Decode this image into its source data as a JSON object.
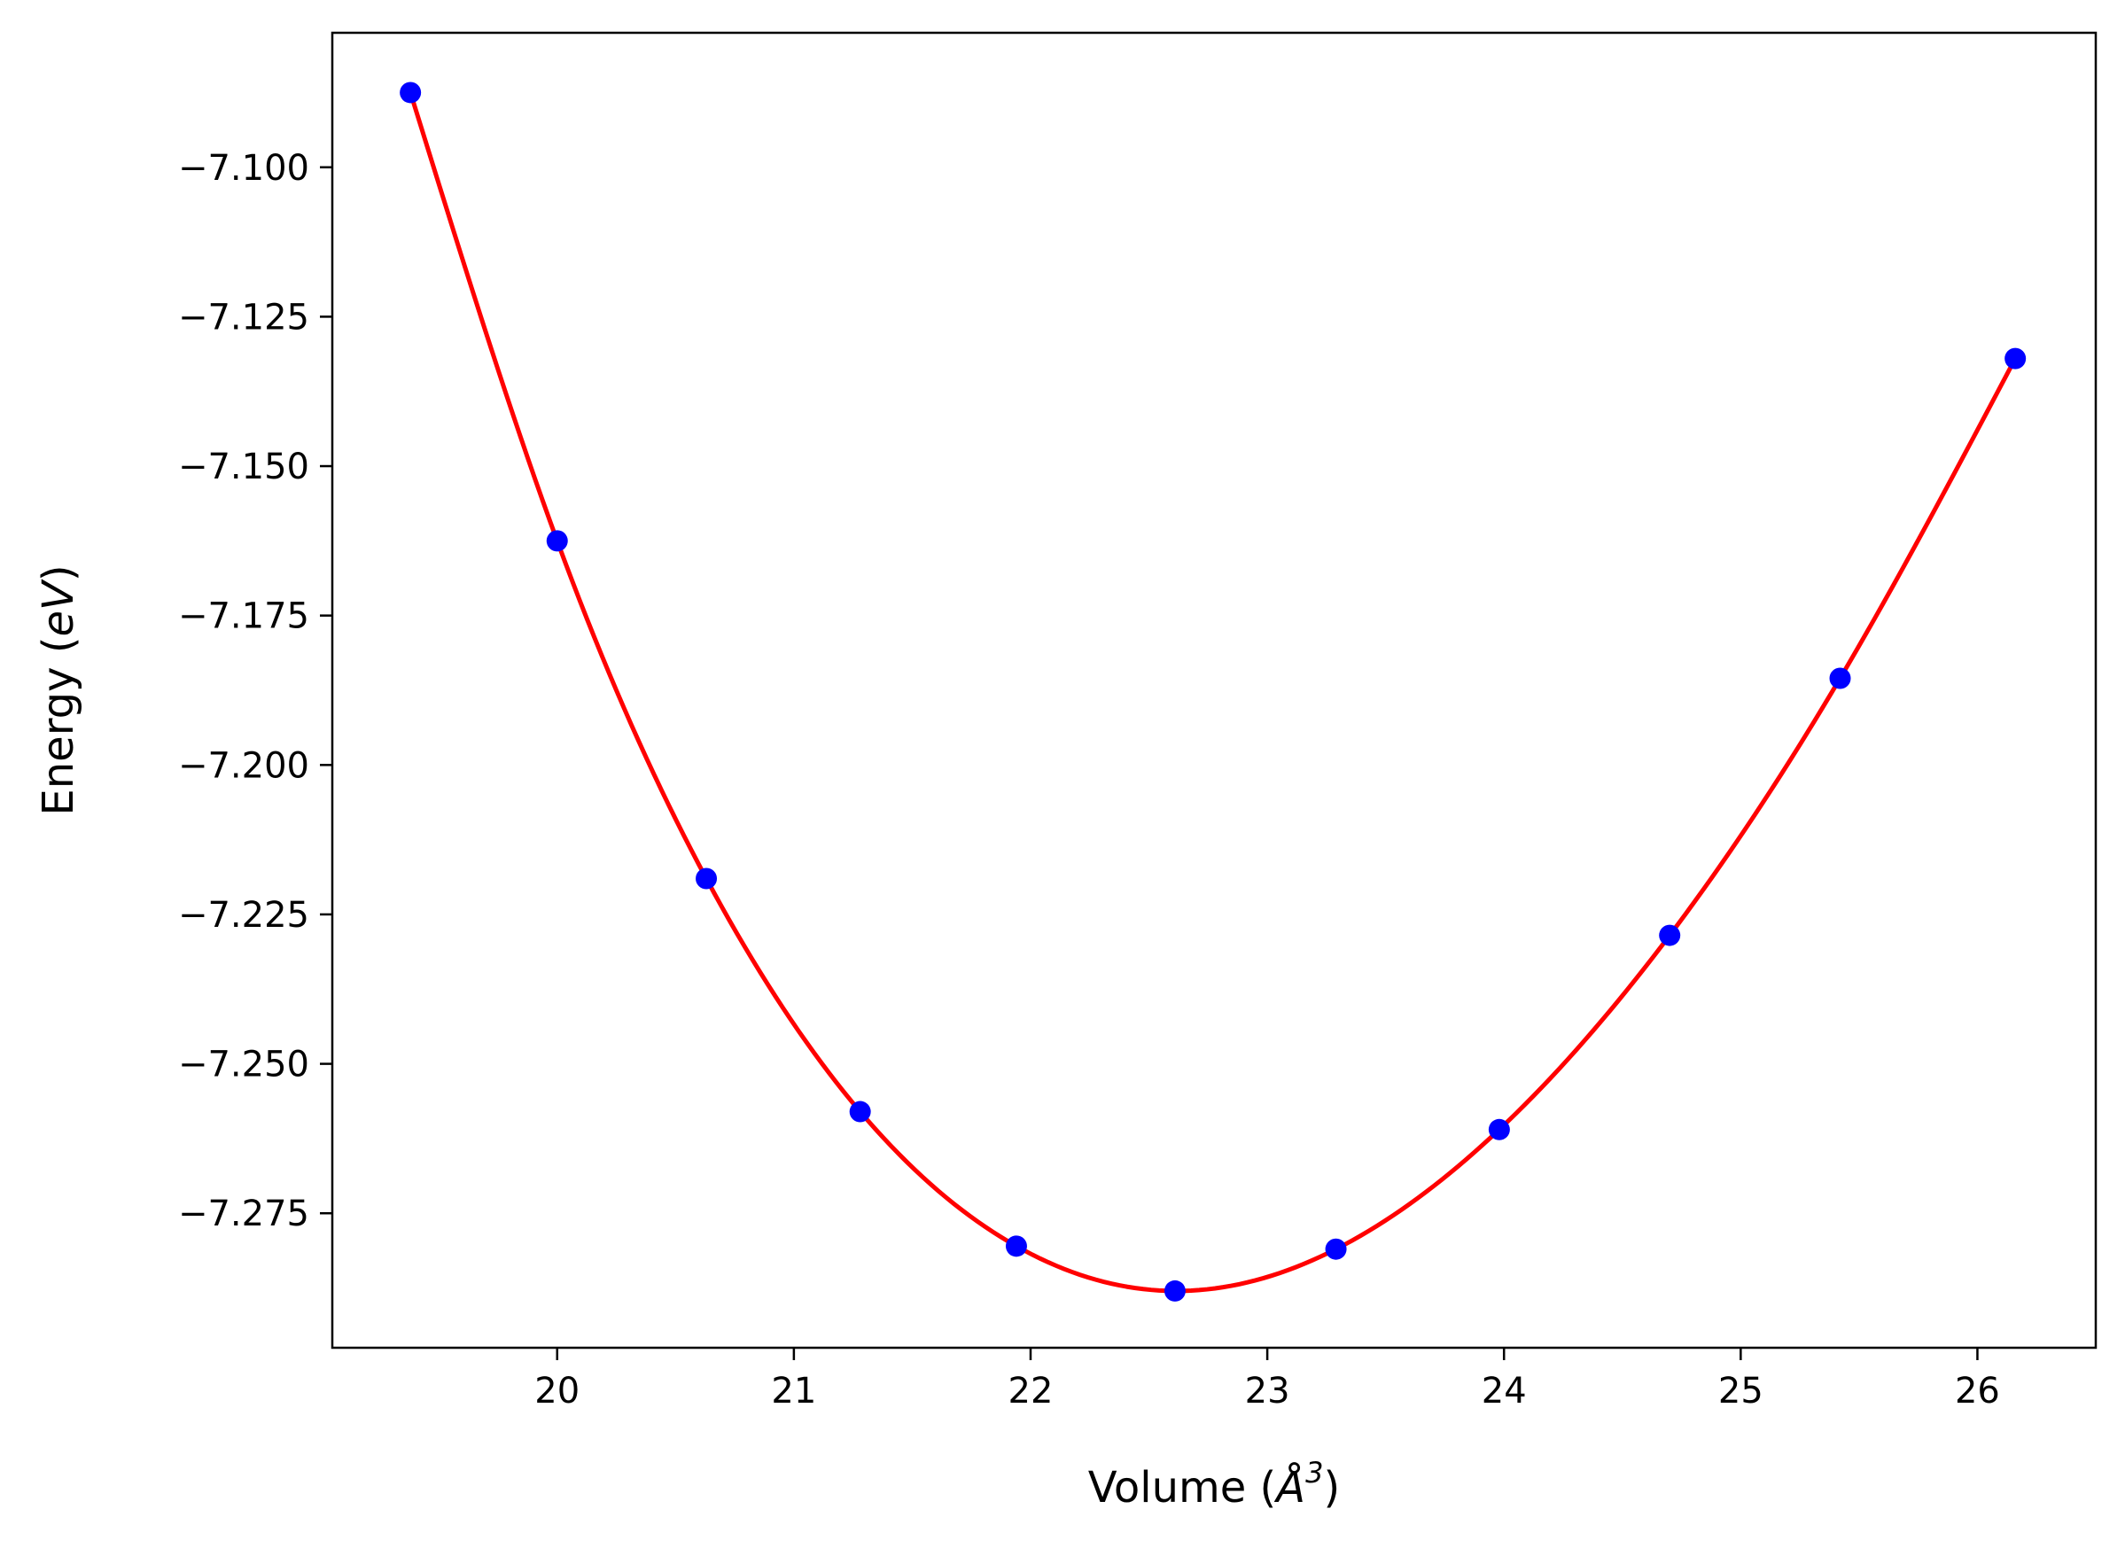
{
  "chart_data": {
    "type": "scatter",
    "xlabel_main": "Volume (",
    "xlabel_symbol": "Å",
    "xlabel_sup": "3",
    "xlabel_close": ")",
    "ylabel_main": "Energy (",
    "ylabel_unit": "eV",
    "ylabel_close": ")",
    "xlim": [
      19.05,
      26.5
    ],
    "ylim": [
      -7.2975,
      -7.0775
    ],
    "xticks": [
      20,
      21,
      22,
      23,
      24,
      25,
      26
    ],
    "xtick_labels": [
      "20",
      "21",
      "22",
      "23",
      "24",
      "25",
      "26"
    ],
    "yticks": [
      -7.1,
      -7.125,
      -7.15,
      -7.175,
      -7.2,
      -7.225,
      -7.25,
      -7.275
    ],
    "ytick_labels": [
      "−7.100",
      "−7.125",
      "−7.150",
      "−7.175",
      "−7.200",
      "−7.225",
      "−7.250",
      "−7.275"
    ],
    "grid": false,
    "series": [
      {
        "kind": "points",
        "color": "#0000ff",
        "x": [
          19.38,
          20.0,
          20.63,
          21.28,
          21.94,
          22.61,
          23.29,
          23.98,
          24.7,
          25.42,
          26.16
        ],
        "y": [
          -7.0875,
          -7.1625,
          -7.219,
          -7.258,
          -7.2805,
          -7.288,
          -7.281,
          -7.261,
          -7.2285,
          -7.1855,
          -7.132
        ]
      },
      {
        "kind": "fit-curve",
        "color": "#ff0000",
        "x": [
          19.38,
          20.0,
          20.63,
          21.28,
          21.94,
          22.61,
          23.29,
          23.98,
          24.7,
          25.42,
          26.16
        ],
        "y": [
          -7.0875,
          -7.1625,
          -7.219,
          -7.258,
          -7.2805,
          -7.288,
          -7.281,
          -7.261,
          -7.2285,
          -7.1855,
          -7.132
        ]
      }
    ]
  }
}
